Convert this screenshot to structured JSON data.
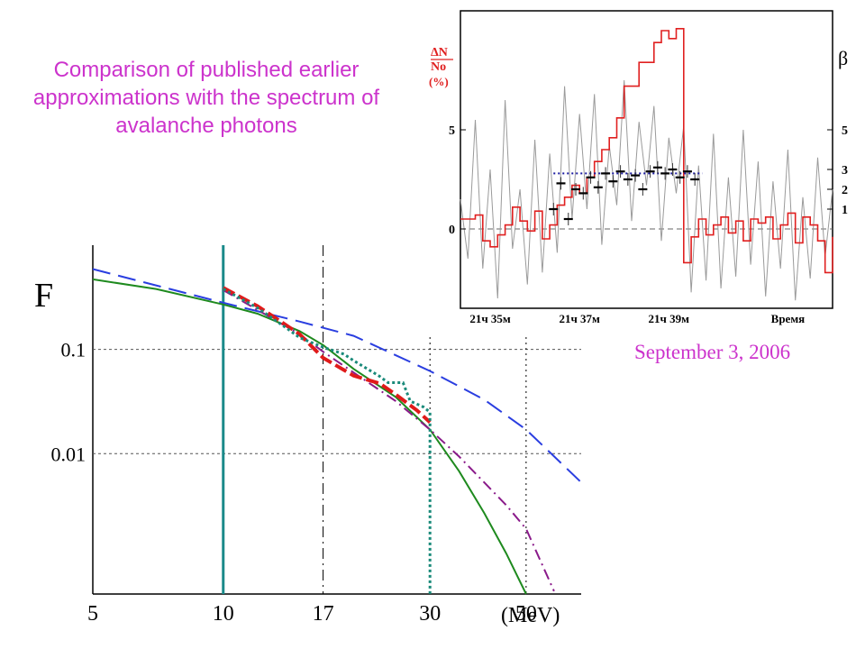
{
  "slide": {
    "title": "Comparison of published earlier approximations with the spectrum of avalanche photons",
    "date_caption": "September 3, 2006"
  },
  "chart_data": [
    {
      "id": "spectrum",
      "type": "line",
      "ylabel": "F",
      "x_unit_label": "(MeV)",
      "x_scale": "log",
      "y_scale": "log",
      "xlim": [
        5,
        67
      ],
      "ylim": [
        0.00045,
        1.0
      ],
      "x_ticks": [
        5,
        10,
        17,
        30,
        50
      ],
      "y_ticks": [
        {
          "value": 0.1,
          "label": "0.1"
        },
        {
          "value": 0.01,
          "label": "0.01"
        }
      ],
      "vertical_markers": [
        {
          "x": 10,
          "style": "solid",
          "color": "#1a8a8a"
        },
        {
          "x": 17,
          "style": "dash-dot",
          "color": "#000000"
        },
        {
          "x": 30,
          "style": "dotted",
          "color": "#000000"
        },
        {
          "x": 50,
          "style": "dotted",
          "color": "#000000"
        }
      ],
      "series": [
        {
          "style": "long-dash",
          "color": "#2a3ee0",
          "x": [
            5,
            10,
            15,
            20,
            30,
            40,
            50,
            67
          ],
          "y": [
            0.59,
            0.28,
            0.185,
            0.135,
            0.062,
            0.033,
            0.017,
            0.0053
          ]
        },
        {
          "style": "solid",
          "color": "#1e8a1e",
          "x": [
            5,
            7,
            10,
            12,
            15,
            17,
            20,
            25,
            30,
            35,
            40,
            45,
            50
          ],
          "y": [
            0.47,
            0.38,
            0.27,
            0.22,
            0.15,
            0.11,
            0.065,
            0.035,
            0.017,
            0.0068,
            0.0027,
            0.0011,
            0.00045
          ]
        },
        {
          "style": "dash-dot",
          "color": "#8a1a8a",
          "x": [
            10,
            15,
            17,
            20,
            25,
            30,
            35,
            40,
            45,
            50,
            58
          ],
          "y": [
            0.37,
            0.14,
            0.095,
            0.06,
            0.032,
            0.017,
            0.0094,
            0.0053,
            0.0032,
            0.0019,
            0.00048
          ]
        },
        {
          "style": "heavy-dash",
          "color": "#e01a1a",
          "x": [
            10,
            12,
            14,
            15,
            17,
            20,
            23,
            25,
            28,
            30
          ],
          "y": [
            0.39,
            0.26,
            0.17,
            0.14,
            0.083,
            0.056,
            0.047,
            0.037,
            0.026,
            0.02
          ]
        },
        {
          "style": "dotted-step",
          "color": "#1a8a7a",
          "x": [
            10,
            12,
            14,
            15,
            17,
            19,
            20,
            23,
            24,
            26,
            27,
            29,
            30,
            30
          ],
          "y": [
            0.38,
            0.25,
            0.16,
            0.13,
            0.105,
            0.09,
            0.078,
            0.055,
            0.048,
            0.048,
            0.032,
            0.028,
            0.025,
            0.00045
          ]
        }
      ]
    },
    {
      "id": "time-series",
      "type": "line",
      "ylabel_left_top": "ΔN",
      "ylabel_left_bottom": "No",
      "ylabel_left_unit": "(%)",
      "ylabel_right": "β",
      "xlim": [
        0,
        100
      ],
      "ylim": [
        -4,
        11
      ],
      "left_ticks": [
        {
          "value": 0,
          "label": "0"
        },
        {
          "value": 5,
          "label": "5"
        }
      ],
      "right_ticks": [
        {
          "value": 1,
          "label": "1"
        },
        {
          "value": 2,
          "label": "2"
        },
        {
          "value": 3,
          "label": "3"
        },
        {
          "value": 5,
          "label": "5"
        }
      ],
      "x_tick_labels": [
        {
          "x": 8,
          "label": "21ч 35м"
        },
        {
          "x": 32,
          "label": "21ч 37м"
        },
        {
          "x": 56,
          "label": "21ч 39м"
        },
        {
          "x": 88,
          "label": "Время"
        }
      ],
      "zero_line": 0,
      "reference_level": {
        "y": 2.8,
        "x_start": 25,
        "x_end": 65
      },
      "series": [
        {
          "name": "",
          "color": "#e02020",
          "style": "step",
          "x": [
            0,
            4,
            6,
            8,
            10,
            12,
            14,
            16,
            18,
            20,
            22,
            24,
            26,
            28,
            30,
            32,
            34,
            36,
            38,
            40,
            42,
            44,
            46,
            48,
            50,
            52,
            54,
            56,
            58,
            60,
            62,
            64,
            66,
            68,
            70,
            72,
            74,
            76,
            78,
            80,
            82,
            84,
            86,
            88,
            90,
            92,
            94,
            96,
            98,
            100
          ],
          "y": [
            0.5,
            0.7,
            -0.6,
            -0.9,
            -0.3,
            0.2,
            1.1,
            0.4,
            -0.1,
            0.9,
            -0.5,
            0.2,
            1.2,
            1.6,
            2.2,
            1.8,
            2.6,
            3.4,
            4.0,
            4.6,
            5.6,
            7.2,
            7.2,
            8.4,
            8.4,
            9.4,
            10.0,
            9.6,
            10.1,
            -1.7,
            -0.4,
            0.5,
            -0.3,
            0.2,
            0.6,
            -0.2,
            0.4,
            -0.6,
            0.5,
            0.3,
            0.6,
            -0.5,
            0.2,
            0.8,
            -0.7,
            0.6,
            0.2,
            -0.6,
            -2.2,
            -0.4
          ]
        },
        {
          "name": "",
          "color": "#9a9a9a",
          "style": "noise",
          "x": [
            0,
            2,
            4,
            6,
            8,
            10,
            12,
            14,
            16,
            18,
            20,
            22,
            24,
            26,
            28,
            30,
            32,
            34,
            36,
            38,
            40,
            42,
            44,
            46,
            48,
            50,
            52,
            54,
            56,
            58,
            60,
            62,
            64,
            66,
            68,
            70,
            72,
            74,
            76,
            78,
            80,
            82,
            84,
            86,
            88,
            90,
            92,
            94,
            96,
            98,
            100
          ],
          "y": [
            1.5,
            -1.5,
            5.5,
            -2.0,
            3.0,
            -3.5,
            6.5,
            -1.0,
            2.0,
            -2.8,
            4.5,
            -2.2,
            3.8,
            -1.2,
            7.2,
            0.5,
            5.8,
            1.0,
            6.8,
            -0.8,
            4.2,
            1.2,
            7.5,
            0.4,
            5.4,
            2.2,
            6.2,
            -0.6,
            4.6,
            1.8,
            5.2,
            -3.2,
            3.2,
            -2.6,
            4.8,
            -3.0,
            2.6,
            -2.4,
            5.0,
            -1.8,
            3.4,
            -3.4,
            2.4,
            -2.0,
            4.0,
            -3.6,
            1.6,
            -2.5,
            3.6,
            -1.4,
            2.0
          ]
        },
        {
          "name": "",
          "color": "#000000",
          "style": "errorbar-points",
          "x": [
            25,
            27,
            29,
            31,
            33,
            35,
            37,
            39,
            41,
            43,
            45,
            47,
            49,
            51,
            53,
            55,
            57,
            59,
            61,
            63
          ],
          "y": [
            1.0,
            2.3,
            0.5,
            2.0,
            1.8,
            2.6,
            2.1,
            2.8,
            2.4,
            2.9,
            2.5,
            2.7,
            2.0,
            2.9,
            3.1,
            2.8,
            3.0,
            2.6,
            2.9,
            2.5
          ]
        }
      ]
    }
  ]
}
